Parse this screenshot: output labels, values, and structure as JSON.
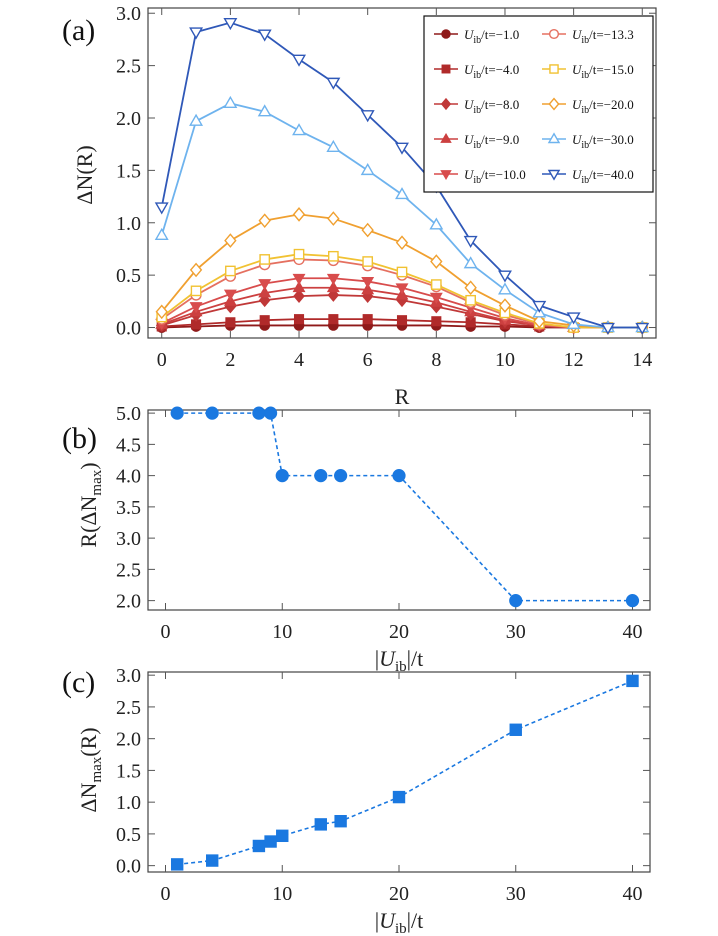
{
  "chart_data": [
    {
      "panel": "(a)",
      "type": "line",
      "xlabel": "R",
      "ylabel": "ΔN(R)",
      "xlim": [
        -0.4,
        14.4
      ],
      "ylim": [
        -0.1,
        3.05
      ],
      "xticks": [
        "0",
        "2",
        "4",
        "6",
        "8",
        "10",
        "12",
        "14"
      ],
      "yticks": [
        "0.0",
        "0.5",
        "1.0",
        "1.5",
        "2.0",
        "2.5",
        "3.0"
      ],
      "legend_placement": "top-right",
      "grid": false,
      "x": [
        0,
        1,
        2,
        3,
        4,
        5,
        6,
        7,
        8,
        9,
        10,
        11,
        12,
        13,
        14
      ],
      "series": [
        {
          "name": "U_ib/t=−1.0",
          "legend_var": "U",
          "legend_sub": "ib",
          "legend_val": "/t=−1.0",
          "color": "#8f1a1a",
          "marker": "circle-filled",
          "values": [
            0.0,
            0.01,
            0.02,
            0.02,
            0.02,
            0.02,
            0.02,
            0.02,
            0.02,
            0.01,
            0.01,
            0.0,
            0.0,
            0.0,
            0.0
          ]
        },
        {
          "name": "U_ib/t=−4.0",
          "legend_var": "U",
          "legend_sub": "ib",
          "legend_val": "/t=−4.0",
          "color": "#b02a2a",
          "marker": "square-filled",
          "values": [
            0.01,
            0.03,
            0.05,
            0.07,
            0.08,
            0.08,
            0.08,
            0.07,
            0.06,
            0.05,
            0.03,
            0.01,
            0.0,
            0.0,
            0.0
          ]
        },
        {
          "name": "U_ib/t=−8.0",
          "legend_var": "U",
          "legend_sub": "ib",
          "legend_val": "/t=−8.0",
          "color": "#c03838",
          "marker": "diamond-filled",
          "values": [
            0.02,
            0.12,
            0.2,
            0.26,
            0.3,
            0.31,
            0.3,
            0.26,
            0.2,
            0.13,
            0.06,
            0.02,
            0.0,
            0.0,
            0.0
          ]
        },
        {
          "name": "U_ib/t=−9.0",
          "legend_var": "U",
          "legend_sub": "ib",
          "legend_val": "/t=−9.0",
          "color": "#cc4040",
          "marker": "triangle-up-filled",
          "values": [
            0.03,
            0.15,
            0.25,
            0.33,
            0.38,
            0.38,
            0.36,
            0.31,
            0.24,
            0.15,
            0.07,
            0.02,
            0.0,
            0.0,
            0.0
          ]
        },
        {
          "name": "U_ib/t=−10.0",
          "legend_var": "U",
          "legend_sub": "ib",
          "legend_val": "/t=−10.0",
          "color": "#d84c4c",
          "marker": "triangle-down-filled",
          "values": [
            0.04,
            0.2,
            0.32,
            0.42,
            0.47,
            0.47,
            0.44,
            0.38,
            0.29,
            0.19,
            0.09,
            0.02,
            0.0,
            0.0,
            0.0
          ]
        },
        {
          "name": "U_ib/t=−13.3",
          "legend_var": "U",
          "legend_sub": "ib",
          "legend_val": "/t=−13.3",
          "color": "#e57060",
          "marker": "circle-open",
          "values": [
            0.08,
            0.31,
            0.49,
            0.6,
            0.65,
            0.64,
            0.59,
            0.5,
            0.39,
            0.24,
            0.12,
            0.03,
            0.0,
            0.0,
            0.0
          ]
        },
        {
          "name": "U_ib/t=−15.0",
          "legend_var": "U",
          "legend_sub": "ib",
          "legend_val": "/t=−15.0",
          "color": "#f1c232",
          "marker": "square-open",
          "values": [
            0.1,
            0.35,
            0.54,
            0.65,
            0.7,
            0.68,
            0.63,
            0.53,
            0.41,
            0.26,
            0.14,
            0.04,
            0.0,
            0.0,
            0.0
          ]
        },
        {
          "name": "U_ib/t=−20.0",
          "legend_var": "U",
          "legend_sub": "ib",
          "legend_val": "/t=−20.0",
          "color": "#f0a030",
          "marker": "diamond-open",
          "values": [
            0.15,
            0.55,
            0.83,
            1.02,
            1.08,
            1.04,
            0.93,
            0.81,
            0.63,
            0.38,
            0.21,
            0.06,
            0.02,
            0.0,
            0.0
          ]
        },
        {
          "name": "U_ib/t=−30.0",
          "legend_var": "U",
          "legend_sub": "ib",
          "legend_val": "/t=−30.0",
          "color": "#6eb3ee",
          "marker": "triangle-up-open",
          "values": [
            0.88,
            1.97,
            2.14,
            2.06,
            1.88,
            1.72,
            1.5,
            1.27,
            0.98,
            0.61,
            0.36,
            0.14,
            0.03,
            0.0,
            0.0
          ]
        },
        {
          "name": "U_ib/t=−40.0",
          "legend_var": "U",
          "legend_sub": "ib",
          "legend_val": "/t=−40.0",
          "color": "#2f58b8",
          "marker": "triangle-down-open",
          "values": [
            1.15,
            2.82,
            2.91,
            2.8,
            2.56,
            2.34,
            2.03,
            1.72,
            1.35,
            0.83,
            0.5,
            0.21,
            0.1,
            0.0,
            0.0
          ]
        }
      ]
    },
    {
      "panel": "(b)",
      "type": "scatter",
      "xlabel": "|U_ib|/t",
      "ylabel": "R(ΔN_max)",
      "xlim": [
        -1.5,
        41.5
      ],
      "ylim": [
        1.85,
        5.05
      ],
      "xticks": [
        "0",
        "10",
        "20",
        "30",
        "40"
      ],
      "yticks": [
        "2.0",
        "2.5",
        "3.0",
        "3.5",
        "4.0",
        "4.5",
        "5.0"
      ],
      "grid": false,
      "series": [
        {
          "color": "#1a78e0",
          "marker": "circle-filled",
          "line": "dashed",
          "x": [
            1,
            4,
            8,
            9,
            10,
            13.3,
            15,
            20,
            30,
            40
          ],
          "y": [
            5,
            5,
            5,
            5,
            4,
            4,
            4,
            4,
            2,
            2
          ]
        }
      ]
    },
    {
      "panel": "(c)",
      "type": "scatter",
      "xlabel": "|U_ib|/t",
      "ylabel": "ΔN_max(R)",
      "xlim": [
        -1.5,
        41.5
      ],
      "ylim": [
        -0.1,
        3.05
      ],
      "xticks": [
        "0",
        "10",
        "20",
        "30",
        "40"
      ],
      "yticks": [
        "0.0",
        "0.5",
        "1.0",
        "1.5",
        "2.0",
        "2.5",
        "3.0"
      ],
      "grid": false,
      "series": [
        {
          "color": "#1a78e0",
          "marker": "square-filled",
          "line": "dashed",
          "x": [
            1,
            4,
            8,
            9,
            10,
            13.3,
            15,
            20,
            30,
            40
          ],
          "y": [
            0.02,
            0.08,
            0.31,
            0.38,
            0.47,
            0.65,
            0.7,
            1.08,
            2.14,
            2.91
          ]
        }
      ]
    }
  ]
}
